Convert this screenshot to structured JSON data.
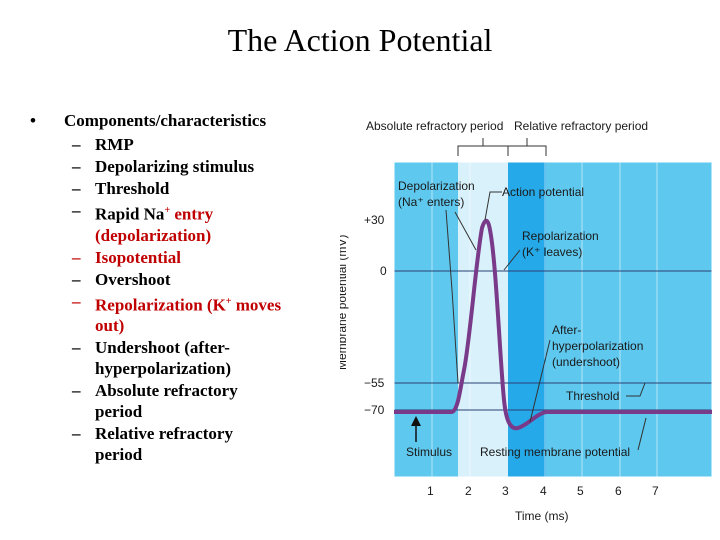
{
  "slide": {
    "title": "The Action Potential"
  },
  "bullets": {
    "main": "Components/characteristics",
    "items": [
      "RMP",
      "Depolarizing stimulus",
      "Threshold",
      "Rapid Na",
      "entry",
      "(depolarization)",
      "Isopotential",
      "Overshoot",
      "Repolarization (K",
      "moves",
      "out)",
      "Undershoot (after-",
      "hyperpolarization)",
      "Absolute refractory",
      "period",
      "Relative refractory",
      "period"
    ]
  },
  "figure": {
    "top_labels": {
      "absolute": "Absolute refractory period",
      "relative": "Relative refractory period"
    },
    "y_axis_label": "Membrane potential (mV)",
    "x_axis_label": "Time (ms)",
    "y_ticks": [
      "+30",
      "0",
      "−55",
      "−70"
    ],
    "x_ticks": [
      "1",
      "2",
      "3",
      "4",
      "5",
      "6",
      "7"
    ],
    "annotations": {
      "depol_1": "Depolarization",
      "depol_2": "(Na⁺ enters)",
      "ap": "Action potential",
      "repol_1": "Repolarization",
      "repol_2": "(K⁺ leaves)",
      "after_1": "After-",
      "after_2": "hyperpolarization",
      "after_3": "(undershoot)",
      "threshold": "Threshold",
      "stimulus": "Stimulus",
      "rmp": "Resting membrane potential"
    },
    "colors": {
      "background": "#5ec8ef",
      "absolute_band": "#d9f1fb",
      "relative_band": "#26a9e8",
      "trace": "#7a3a8a"
    }
  }
}
